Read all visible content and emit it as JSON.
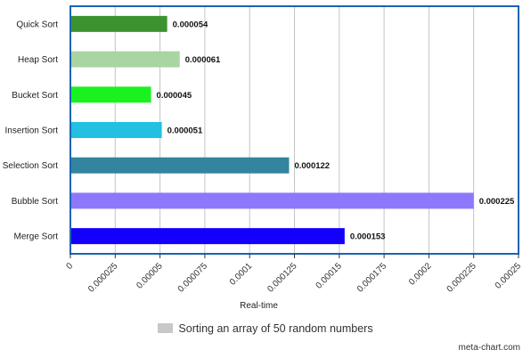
{
  "chart_data": {
    "type": "bar",
    "orientation": "horizontal",
    "categories": [
      "Quick Sort",
      "Heap Sort",
      "Bucket Sort",
      "Insertion Sort",
      "Selection Sort",
      "Bubble Sort",
      "Merge Sort"
    ],
    "values": [
      5.4e-05,
      6.1e-05,
      4.5e-05,
      5.1e-05,
      0.000122,
      0.000225,
      0.000153
    ],
    "value_labels": [
      "0.000054",
      "0.000061",
      "0.000045",
      "0.000051",
      "0.000122",
      "0.000225",
      "0.000153"
    ],
    "colors": [
      "#3d9230",
      "#a8d5a2",
      "#1af21f",
      "#22c1e2",
      "#33859f",
      "#8d78fb",
      "#1200fb"
    ],
    "xlabel": "Real-time",
    "xlim": [
      0,
      0.00025
    ],
    "x_ticks": [
      0,
      2.5e-05,
      5e-05,
      7.5e-05,
      0.0001,
      0.000125,
      0.00015,
      0.000175,
      0.0002,
      0.000225,
      0.00025
    ],
    "x_tick_labels": [
      "0",
      "0.000025",
      "0.00005",
      "0.000075",
      "0.0001",
      "0.000125",
      "0.00015",
      "0.000175",
      "0.0002",
      "0.000225",
      "0.00025"
    ],
    "grid": true,
    "legend": {
      "label": "Sorting an array of 50 random numbers",
      "placement": "bottom",
      "color": "#c8c8c8"
    },
    "frame_color": "#1a64b4"
  },
  "footer": {
    "credit": "meta-chart.com"
  }
}
